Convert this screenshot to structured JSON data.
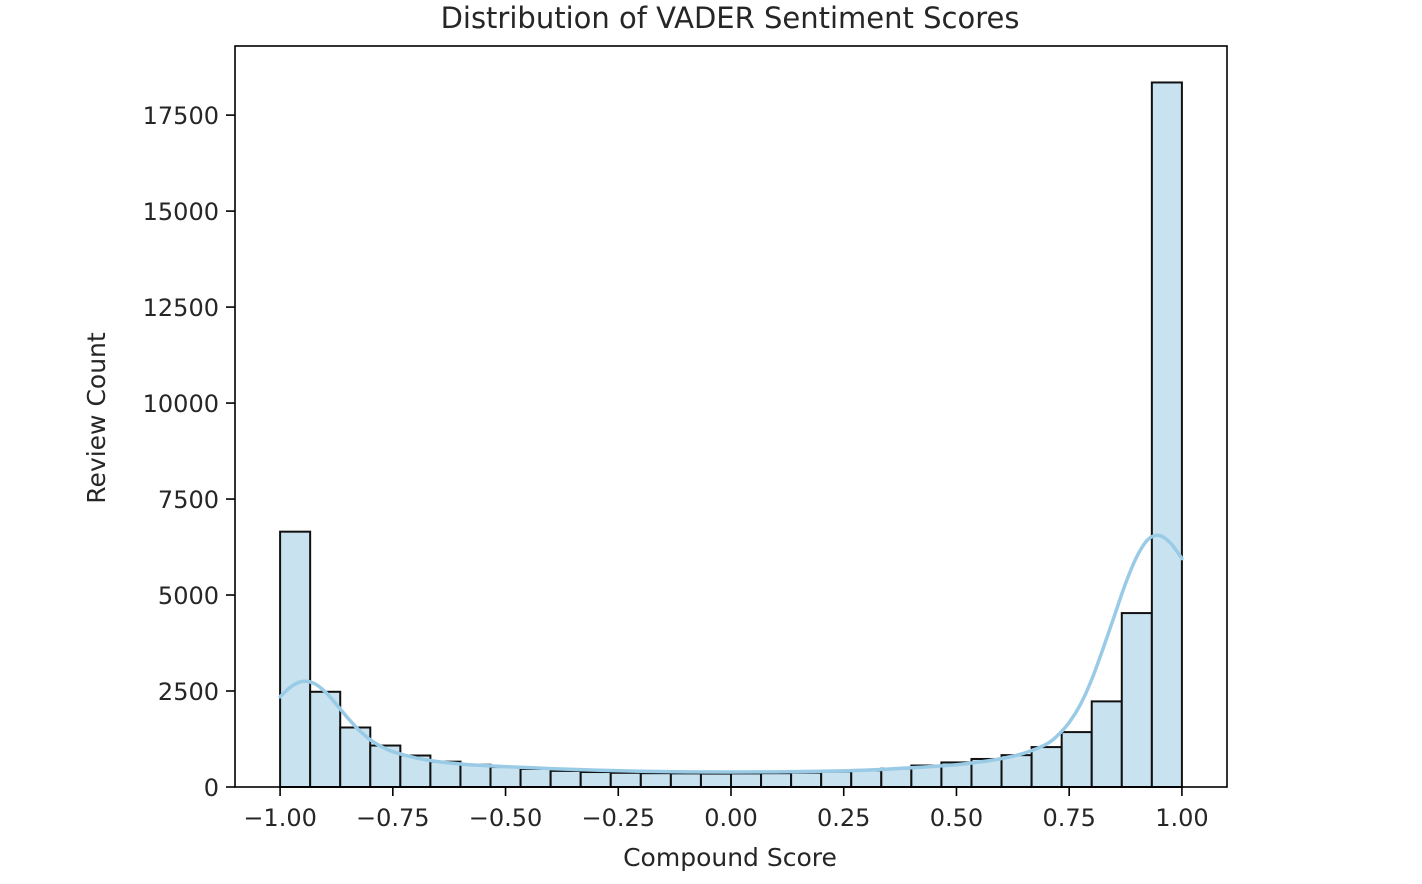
{
  "chart_data": {
    "type": "bar",
    "title": "Distribution of VADER Sentiment Scores",
    "xlabel": "Compound Score",
    "ylabel": "Review Count",
    "xlim": [
      -1.1,
      1.1
    ],
    "ylim": [
      0,
      19300
    ],
    "x_ticks": [
      -1.0,
      -0.75,
      -0.5,
      -0.25,
      0.0,
      0.25,
      0.5,
      0.75,
      1.0
    ],
    "x_tick_labels": [
      "−1.00",
      "−0.75",
      "−0.50",
      "−0.25",
      "0.00",
      "0.25",
      "0.50",
      "0.75",
      "1.00"
    ],
    "y_ticks": [
      0,
      2500,
      5000,
      7500,
      10000,
      12500,
      15000,
      17500
    ],
    "y_tick_labels": [
      "0",
      "2500",
      "5000",
      "7500",
      "10000",
      "12500",
      "15000",
      "17500"
    ],
    "grid": false,
    "bin_start": -1.0,
    "bin_end": 1.0,
    "values": [
      6650,
      2480,
      1550,
      1080,
      820,
      660,
      580,
      520,
      470,
      420,
      390,
      370,
      360,
      355,
      350,
      355,
      360,
      375,
      400,
      430,
      480,
      560,
      640,
      730,
      830,
      1040,
      1430,
      2230,
      4530,
      18350
    ],
    "kde": {
      "x": [
        -1.0,
        -0.975,
        -0.95,
        -0.925,
        -0.9,
        -0.875,
        -0.85,
        -0.825,
        -0.8,
        -0.775,
        -0.75,
        -0.7,
        -0.65,
        -0.6,
        -0.55,
        -0.5,
        -0.4,
        -0.3,
        -0.2,
        -0.1,
        0.0,
        0.1,
        0.2,
        0.3,
        0.4,
        0.5,
        0.55,
        0.6,
        0.65,
        0.7,
        0.725,
        0.75,
        0.775,
        0.8,
        0.825,
        0.85,
        0.875,
        0.9,
        0.925,
        0.95,
        0.975,
        1.0
      ],
      "y": [
        2350,
        2620,
        2750,
        2700,
        2480,
        2150,
        1800,
        1480,
        1230,
        1050,
        920,
        760,
        660,
        600,
        560,
        530,
        480,
        440,
        410,
        395,
        390,
        395,
        410,
        440,
        500,
        580,
        650,
        740,
        880,
        1120,
        1350,
        1680,
        2150,
        2800,
        3600,
        4450,
        5300,
        6000,
        6450,
        6550,
        6350,
        5950
      ]
    },
    "colors": {
      "bar_fill": "#c8e2ef",
      "bar_edge": "#111111",
      "kde_line": "#99cbe6"
    }
  }
}
